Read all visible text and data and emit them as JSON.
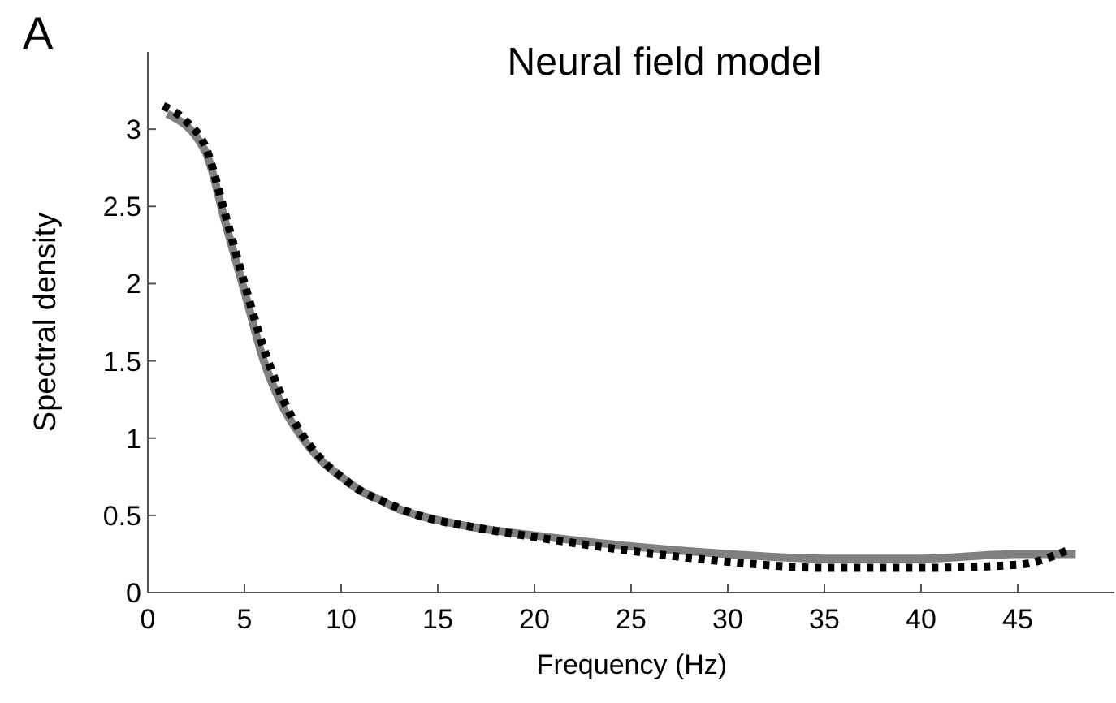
{
  "chart_data": {
    "type": "line",
    "title": "Neural field model",
    "xlabel": "Frequency (Hz)",
    "ylabel": "Spectral density",
    "annotations": [
      "A"
    ],
    "xlim": [
      0,
      50
    ],
    "xticks": [
      0,
      5,
      10,
      15,
      20,
      25,
      30,
      35,
      40,
      45
    ],
    "ylim": [
      0,
      3.5
    ],
    "yticks": [
      0,
      0.5,
      1,
      1.5,
      2,
      2.5,
      3
    ],
    "grid": false,
    "series": [
      {
        "color": "#808080",
        "line_style": "solid",
        "x": [
          1,
          3,
          4,
          5,
          6,
          7,
          8,
          9,
          10,
          11,
          12,
          13,
          14,
          15,
          17,
          20,
          25,
          30,
          35,
          40,
          45,
          48
        ],
        "values": [
          3.1,
          2.85,
          2.4,
          1.95,
          1.5,
          1.2,
          1.0,
          0.85,
          0.75,
          0.66,
          0.6,
          0.54,
          0.5,
          0.47,
          0.42,
          0.37,
          0.3,
          0.25,
          0.22,
          0.22,
          0.25,
          0.25
        ]
      },
      {
        "color": "#000000",
        "line_style": "dotted",
        "x": [
          0.8,
          2,
          3,
          4,
          5,
          6,
          7,
          8,
          9,
          10,
          11,
          12,
          14,
          17,
          20,
          25,
          30,
          35,
          40,
          45,
          47.5
        ],
        "values": [
          3.15,
          3.05,
          2.88,
          2.45,
          2.0,
          1.58,
          1.25,
          1.02,
          0.86,
          0.75,
          0.66,
          0.6,
          0.5,
          0.42,
          0.36,
          0.27,
          0.2,
          0.16,
          0.16,
          0.18,
          0.27
        ]
      }
    ]
  }
}
